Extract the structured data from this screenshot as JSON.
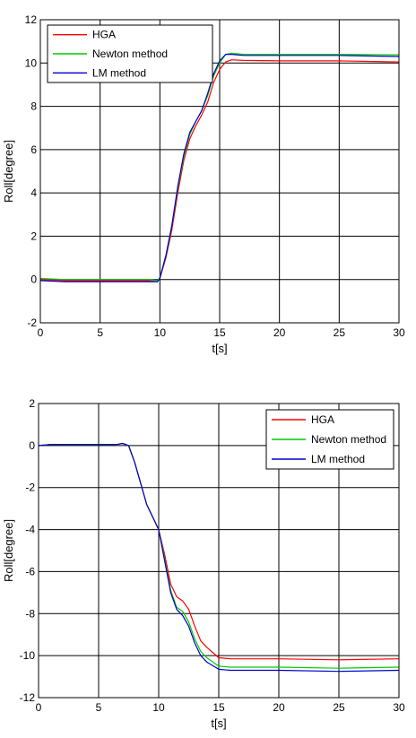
{
  "chart_data": [
    {
      "type": "line",
      "title": "",
      "xlabel": "t[s]",
      "ylabel": "Roll[degree]",
      "xlim": [
        0,
        30
      ],
      "ylim": [
        -2,
        12
      ],
      "xticks": [
        0,
        5,
        10,
        15,
        20,
        25,
        30
      ],
      "yticks": [
        -2,
        0,
        2,
        4,
        6,
        8,
        10,
        12
      ],
      "grid": true,
      "legend_position": "top-left",
      "series": [
        {
          "name": "HGA",
          "color": "#ff0000",
          "x": [
            0,
            2,
            5,
            9,
            9.8,
            10,
            10.5,
            11,
            11.5,
            12,
            12.5,
            13,
            13.5,
            14,
            14.5,
            15,
            15.5,
            16,
            17,
            20,
            25,
            30
          ],
          "y": [
            0,
            -0.05,
            -0.05,
            -0.05,
            -0.1,
            0.05,
            1.0,
            2.3,
            4.0,
            5.5,
            6.5,
            7.1,
            7.6,
            8.2,
            9.1,
            9.7,
            10.05,
            10.15,
            10.12,
            10.1,
            10.1,
            10.05
          ]
        },
        {
          "name": "Newton method",
          "color": "#00cc00",
          "x": [
            0,
            2,
            5,
            9,
            9.8,
            10,
            10.5,
            11,
            11.5,
            12,
            12.5,
            13,
            13.5,
            14,
            14.5,
            15,
            15.5,
            16,
            17,
            20,
            25,
            30
          ],
          "y": [
            0.05,
            0.0,
            0.0,
            0.0,
            -0.05,
            0.1,
            1.1,
            2.5,
            4.2,
            5.7,
            6.7,
            7.3,
            7.8,
            8.5,
            9.4,
            10.0,
            10.4,
            10.45,
            10.4,
            10.4,
            10.4,
            10.38
          ]
        },
        {
          "name": "LM method",
          "color": "#0000cc",
          "x": [
            0,
            2,
            5,
            9,
            9.8,
            10,
            10.5,
            11,
            11.5,
            12,
            12.5,
            13,
            13.5,
            14,
            14.5,
            15,
            15.5,
            16,
            17,
            20,
            25,
            30
          ],
          "y": [
            -0.05,
            -0.1,
            -0.1,
            -0.1,
            -0.1,
            0.05,
            1.1,
            2.5,
            4.3,
            5.8,
            6.8,
            7.3,
            7.8,
            8.6,
            9.5,
            10.1,
            10.4,
            10.4,
            10.35,
            10.35,
            10.35,
            10.3
          ]
        }
      ]
    },
    {
      "type": "line",
      "title": "",
      "xlabel": "t[s]",
      "ylabel": "Roll[degree]",
      "xlim": [
        0,
        30
      ],
      "ylim": [
        -12,
        2
      ],
      "xticks": [
        0,
        5,
        10,
        15,
        20,
        25,
        30
      ],
      "yticks": [
        -12,
        -10,
        -8,
        -6,
        -4,
        -2,
        0,
        2
      ],
      "grid": true,
      "legend_position": "top-right",
      "series": [
        {
          "name": "HGA",
          "color": "#ff0000",
          "x": [
            0,
            1,
            5,
            6.5,
            7,
            7.5,
            8,
            8.5,
            9,
            9.5,
            10,
            10.5,
            11,
            11.5,
            12,
            12.5,
            13,
            13.5,
            14,
            15,
            16,
            18,
            20,
            25,
            30
          ],
          "y": [
            0,
            0.05,
            0.05,
            0.05,
            0.1,
            0.0,
            -0.8,
            -1.8,
            -2.8,
            -3.4,
            -4.0,
            -5.2,
            -6.6,
            -7.2,
            -7.4,
            -7.8,
            -8.6,
            -9.3,
            -9.6,
            -10.1,
            -10.15,
            -10.15,
            -10.15,
            -10.2,
            -10.15
          ]
        },
        {
          "name": "Newton method",
          "color": "#00cc00",
          "x": [
            0,
            1,
            5,
            6.5,
            7,
            7.5,
            8,
            8.5,
            9,
            9.5,
            10,
            10.5,
            11,
            11.5,
            12,
            12.5,
            13,
            13.5,
            14,
            15,
            16,
            18,
            20,
            25,
            30
          ],
          "y": [
            0,
            0.05,
            0.05,
            0.05,
            0.1,
            0.0,
            -0.8,
            -1.8,
            -2.8,
            -3.4,
            -4.0,
            -5.4,
            -6.9,
            -7.7,
            -7.9,
            -8.4,
            -9.2,
            -9.8,
            -10.1,
            -10.5,
            -10.55,
            -10.55,
            -10.55,
            -10.6,
            -10.55
          ]
        },
        {
          "name": "LM method",
          "color": "#0000cc",
          "x": [
            0,
            1,
            5,
            6.5,
            7,
            7.5,
            8,
            8.5,
            9,
            9.5,
            10,
            10.5,
            11,
            11.5,
            12,
            12.5,
            13,
            13.5,
            14,
            15,
            16,
            18,
            20,
            25,
            30
          ],
          "y": [
            0,
            0.05,
            0.05,
            0.05,
            0.1,
            0.0,
            -0.8,
            -1.8,
            -2.8,
            -3.4,
            -4.0,
            -5.5,
            -7.0,
            -7.8,
            -8.1,
            -8.6,
            -9.4,
            -10.0,
            -10.3,
            -10.65,
            -10.7,
            -10.7,
            -10.7,
            -10.75,
            -10.7
          ]
        }
      ]
    }
  ]
}
